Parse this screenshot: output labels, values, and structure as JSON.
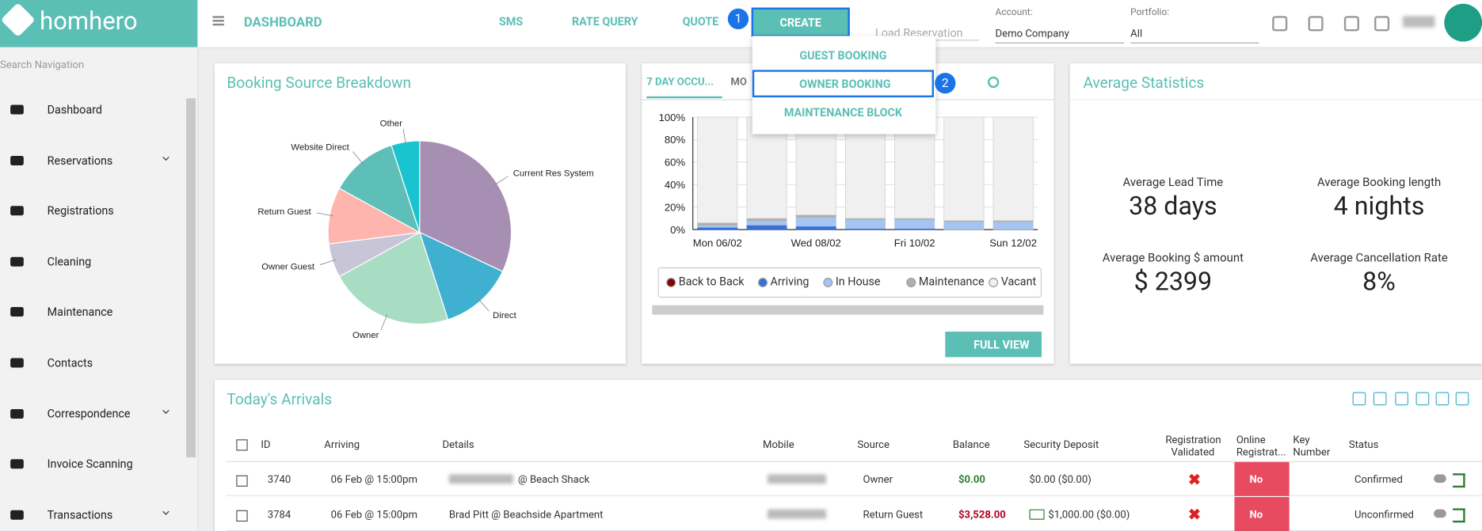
{
  "header": {
    "logo": "homhero",
    "title": "DASHBOARD",
    "nav": [
      "SMS",
      "RATE QUERY",
      "QUOTE"
    ],
    "create": "CREATE",
    "search_placeholder": "Load Reservation",
    "account_label": "Account:",
    "account": "Demo Company",
    "portfolio_label": "Portfolio:",
    "portfolio": "All"
  },
  "create_menu": {
    "items": [
      "GUEST BOOKING",
      "OWNER BOOKING",
      "MAINTENANCE BLOCK"
    ]
  },
  "steps": [
    1,
    2
  ],
  "sidebar": {
    "search_placeholder": "Search Navigation",
    "items": [
      "Dashboard",
      "Reservations",
      "Registrations",
      "Cleaning",
      "Maintenance",
      "Contacts",
      "Correspondence",
      "Invoice Scanning",
      "Transactions"
    ]
  },
  "chart_data": [
    {
      "type": "pie",
      "title": "Booking Source Breakdown",
      "categories": [
        "Current Res System",
        "Direct",
        "Owner",
        "Owner Guest",
        "Return Guest",
        "Website Direct",
        "Other"
      ],
      "values": [
        32,
        13,
        22,
        6,
        10,
        12,
        5
      ],
      "colors": [
        "#a78fb3",
        "#3fb0cf",
        "#a8dcc3",
        "#c9c5d8",
        "#fdb5ae",
        "#5ebfb8",
        "#19c3d0"
      ]
    },
    {
      "type": "stacked_bar",
      "tabs": [
        "7 DAY OCCU...",
        "MO"
      ],
      "categories": [
        "Mon 06/02",
        null,
        "Wed 08/02",
        null,
        "Fri 10/02",
        null,
        "Sun 12/02"
      ],
      "ylim": [
        0,
        100
      ],
      "yticks": [
        {
          "value": 0,
          "label": "0%"
        },
        {
          "value": 20,
          "label": "20%"
        },
        {
          "value": 40,
          "label": "40%"
        },
        {
          "value": 60,
          "label": "60%"
        },
        {
          "value": 80,
          "label": "80%"
        },
        {
          "value": 100,
          "label": "100%"
        }
      ],
      "grid": true,
      "series": [
        {
          "name": "Back to Back",
          "color": "#8b0000",
          "values": [
            0,
            0,
            0,
            0,
            0,
            0,
            0
          ]
        },
        {
          "name": "Arriving",
          "color": "#3a6fd8",
          "values": [
            2,
            4,
            3,
            1,
            1,
            0,
            0
          ]
        },
        {
          "name": "In House",
          "color": "#a6c4f0",
          "values": [
            2,
            4,
            8,
            8,
            8,
            7,
            7
          ]
        },
        {
          "name": "Maintenance",
          "color": "#b0b0b0",
          "values": [
            2,
            2,
            2,
            1,
            1,
            1,
            1
          ]
        },
        {
          "name": "Vacant",
          "color": "#f0f0f0",
          "values": [
            94,
            90,
            87,
            90,
            90,
            92,
            92
          ]
        }
      ],
      "button": "FULL VIEW"
    }
  ],
  "stats": {
    "title": "Average Statistics",
    "items": [
      {
        "label": "Average Lead Time",
        "value": "38 days"
      },
      {
        "label": "Average Booking length",
        "value": "4 nights"
      },
      {
        "label": "Average Booking $ amount",
        "value": "$ 2399"
      },
      {
        "label": "Average Cancellation Rate",
        "value": "8%"
      }
    ]
  },
  "arrivals": {
    "title": "Today's Arrivals",
    "columns": [
      "ID",
      "Arriving",
      "Details",
      "Mobile",
      "Source",
      "Balance",
      "Security Deposit",
      "Registration Validated",
      "Online Registrat...",
      "Key Number",
      "Status"
    ],
    "rows": [
      {
        "id": "3740",
        "arriving": "06 Feb @ 15:00pm",
        "details": "@ Beach Shack",
        "source": "Owner",
        "balance": "$0.00",
        "deposit": "$0.00 ($0.00)",
        "online": "No",
        "status": "Confirmed"
      },
      {
        "id": "3784",
        "arriving": "06 Feb @ 15:00pm",
        "details": "Brad Pitt @ Beachside Apartment",
        "source": "Return Guest",
        "balance": "$3,528.00",
        "deposit": "$1,000.00 ($0.00)",
        "online": "No",
        "status": "Unconfirmed"
      }
    ]
  }
}
